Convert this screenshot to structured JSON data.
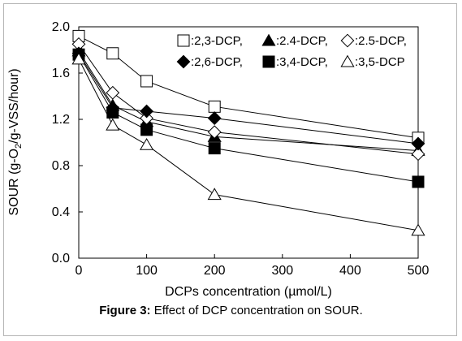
{
  "chart_data": {
    "type": "line",
    "xlabel_prefix": "DCPs concentration (",
    "xlabel_unit": "µmol/L",
    "xlabel_suffix": ")",
    "ylabel_main": "SOUR (g-O",
    "ylabel_sub": "2",
    "ylabel_rest": "/g-VSS/hour)",
    "xlim": [
      0,
      500
    ],
    "ylim": [
      0,
      2.0
    ],
    "x_ticks": [
      "0",
      "100",
      "200",
      "300",
      "400",
      "500"
    ],
    "x_tick_values": [
      0,
      100,
      200,
      300,
      400,
      500
    ],
    "y_ticks": [
      "0.0",
      "0.4",
      "0.8",
      "1.2",
      "1.6",
      "2.0"
    ],
    "y_tick_values": [
      0,
      0.4,
      0.8,
      1.2,
      1.6,
      2.0
    ],
    "x": [
      0,
      50,
      100,
      200,
      500
    ],
    "series": [
      {
        "name": ":2,3-DCP,",
        "marker": "square-open",
        "values": [
          1.92,
          1.77,
          1.53,
          1.31,
          1.04
        ]
      },
      {
        "name": ":2.4-DCP,",
        "marker": "triangle-filled",
        "values": [
          1.79,
          1.32,
          1.18,
          1.05,
          0.93
        ]
      },
      {
        "name": ":2.5-DCP,",
        "marker": "diamond-open",
        "values": [
          1.85,
          1.43,
          1.21,
          1.09,
          0.9
        ]
      },
      {
        "name": ":2,6-DCP,",
        "marker": "diamond-filled",
        "values": [
          1.77,
          1.3,
          1.27,
          1.21,
          0.99
        ]
      },
      {
        "name": ":3,4-DCP,",
        "marker": "square-filled",
        "values": [
          1.76,
          1.26,
          1.11,
          0.95,
          0.66
        ]
      },
      {
        "name": ":3,5-DCP",
        "marker": "triangle-open",
        "values": [
          1.72,
          1.15,
          0.98,
          0.55,
          0.24
        ]
      }
    ]
  },
  "caption": {
    "label": "Figure 3:",
    "text": " Effect of DCP concentration on SOUR."
  }
}
